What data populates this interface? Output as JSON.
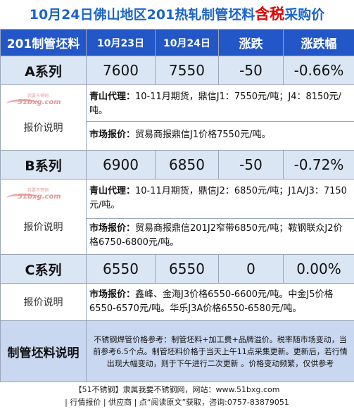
{
  "title": {
    "prefix": "10月24日佛山地区201热轧制管坯料",
    "emphasis": "含税",
    "suffix": "采购价"
  },
  "table": {
    "headers": [
      "201制管坯料",
      "10月23日",
      "10月24日",
      "涨跌",
      "涨跌幅"
    ],
    "rows": [
      {
        "name": "A系列",
        "d1": "7600",
        "d2": "7550",
        "chg": "-50",
        "pct": "-0.66%",
        "label": "报价说明",
        "note1_key": "青山代理：",
        "note1_text": "10-11月期货，鼎信J1：7550元/吨；J4：8150元/吨。",
        "note2_key": "市场报价：",
        "note2_text": "贸易商报鼎信J1价格7550元/吨。"
      },
      {
        "name": "B系列",
        "d1": "6900",
        "d2": "6850",
        "chg": "-50",
        "pct": "-0.72%",
        "label": "报价说明",
        "note1_key": "青山代理：",
        "note1_text": "10-11月期货，鼎信J2：6850元/吨；J1A/J3：7150元/吨。",
        "note2_key": "市场报价：",
        "note2_text": "贸易商报鼎信201J2窄带6850元/吨；鞍钢联众J2价格6750-6800元/吨。"
      },
      {
        "name": "C系列",
        "d1": "6550",
        "d2": "6550",
        "chg": "0",
        "pct": "0.00%",
        "label": "报价说明",
        "note1_key": "市场报价：",
        "note1_text": "鑫峰、金海J3价格6550-6600元/吨。中金J5价格6550-6570元/吨。华乐J3A价格6550-6580元/吨。"
      }
    ],
    "footer_label": "制管坯料说明",
    "footer_note": "不锈钢焊管价格参考：制管坯料+加工费+品牌溢价。税率随市场变动，当前参考6.5个点。制管坯料价格于当天上午11点采集更新。更新后，若行情出现大幅变动，则于下午进行二次更新 。价格变动频繁，仅供参考"
  },
  "watermark": {
    "text": "51bxg.com",
    "small": "我要不锈钢"
  },
  "bottom": {
    "line1": "【51不锈钢】隶属我要不锈钢网，网站：www.51bxg.com",
    "line2": "| 行情报价 | 供应商 | 点“阅读原文”获取，咨询:0757-83879051"
  },
  "colors": {
    "title": "#1c64c8",
    "emphasis": "#e00000",
    "header_bg": "#2357c7",
    "row_bg": "#dbe6f4",
    "footer_bg": "#c9d7f0"
  }
}
